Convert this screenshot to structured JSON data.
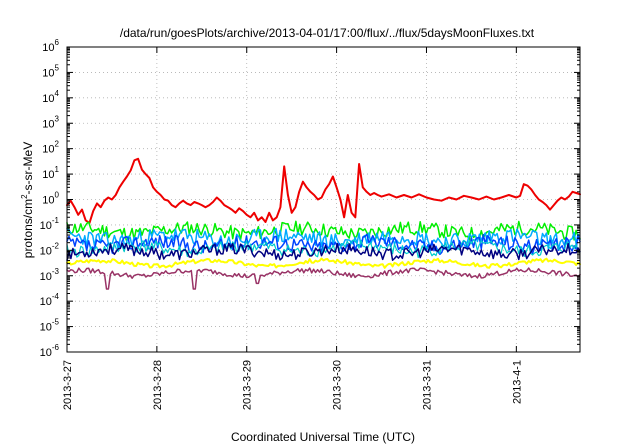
{
  "chart_data": {
    "type": "line",
    "title": "/data/run/goesPlots/archive/2013-04-01/17:00/flux/../flux/5daysMoonFluxes.txt",
    "xlabel": "Coordinated Universal Time (UTC)",
    "ylabel": {
      "base": "protons/cm",
      "sup": "2",
      "rest": "-s-sr-MeV"
    },
    "x_range": [
      "2013-03-27",
      "2013-04-01T17:00"
    ],
    "x_ticks": [
      "2013-3-27",
      "2013-3-28",
      "2013-3-29",
      "2013-3-30",
      "2013-3-31",
      "2013-4-1"
    ],
    "y_scale": "log",
    "y_range": [
      1e-06,
      1000000.0
    ],
    "y_ticks": [
      {
        "base": "10",
        "exp": "-6"
      },
      {
        "base": "10",
        "exp": "-5"
      },
      {
        "base": "10",
        "exp": "-4"
      },
      {
        "base": "10",
        "exp": "-3"
      },
      {
        "base": "10",
        "exp": "-2"
      },
      {
        "base": "10",
        "exp": "-1"
      },
      {
        "base": "10",
        "exp": "0"
      },
      {
        "base": "10",
        "exp": "1"
      },
      {
        "base": "10",
        "exp": "2"
      },
      {
        "base": "10",
        "exp": "3"
      },
      {
        "base": "10",
        "exp": "4"
      },
      {
        "base": "10",
        "exp": "5"
      },
      {
        "base": "10",
        "exp": "6"
      }
    ],
    "grid": true,
    "series": [
      {
        "color": "#ee0000",
        "width": 2,
        "points": [
          [
            "2013-03-27T00:00",
            0.6
          ],
          [
            "2013-03-27T01:00",
            0.9
          ],
          [
            "2013-03-27T02:00",
            0.5
          ],
          [
            "2013-03-27T03:00",
            0.25
          ],
          [
            "2013-03-27T04:00",
            0.4
          ],
          [
            "2013-03-27T05:00",
            0.15
          ],
          [
            "2013-03-27T06:00",
            0.12
          ],
          [
            "2013-03-27T07:00",
            0.35
          ],
          [
            "2013-03-27T08:00",
            0.7
          ],
          [
            "2013-03-27T09:00",
            0.5
          ],
          [
            "2013-03-27T10:00",
            0.9
          ],
          [
            "2013-03-27T11:00",
            1.2
          ],
          [
            "2013-03-27T12:00",
            1.0
          ],
          [
            "2013-03-27T13:00",
            1.5
          ],
          [
            "2013-03-27T14:00",
            3.0
          ],
          [
            "2013-03-27T15:00",
            5.0
          ],
          [
            "2013-03-27T16:00",
            8.0
          ],
          [
            "2013-03-27T17:00",
            14.0
          ],
          [
            "2013-03-27T18:00",
            35.0
          ],
          [
            "2013-03-27T19:00",
            40.0
          ],
          [
            "2013-03-27T20:00",
            15.0
          ],
          [
            "2013-03-27T21:00",
            10.0
          ],
          [
            "2013-03-27T22:00",
            7.0
          ],
          [
            "2013-03-27T23:00",
            3.0
          ],
          [
            "2013-03-28T00:00",
            2.0
          ],
          [
            "2013-03-28T01:00",
            1.5
          ],
          [
            "2013-03-28T02:00",
            1.0
          ],
          [
            "2013-03-28T03:00",
            0.9
          ],
          [
            "2013-03-28T04:00",
            0.6
          ],
          [
            "2013-03-28T05:00",
            0.5
          ],
          [
            "2013-03-28T06:00",
            0.7
          ],
          [
            "2013-03-28T07:00",
            0.9
          ],
          [
            "2013-03-28T08:00",
            0.7
          ],
          [
            "2013-03-28T09:00",
            0.6
          ],
          [
            "2013-03-28T10:00",
            0.8
          ],
          [
            "2013-03-28T11:00",
            0.7
          ],
          [
            "2013-03-28T12:00",
            0.6
          ],
          [
            "2013-03-28T13:00",
            0.5
          ],
          [
            "2013-03-28T14:00",
            0.6
          ],
          [
            "2013-03-28T15:00",
            0.8
          ],
          [
            "2013-03-28T16:00",
            1.2
          ],
          [
            "2013-03-28T17:00",
            0.9
          ],
          [
            "2013-03-28T18:00",
            0.6
          ],
          [
            "2013-03-28T19:00",
            0.5
          ],
          [
            "2013-03-28T20:00",
            0.4
          ],
          [
            "2013-03-28T21:00",
            0.3
          ],
          [
            "2013-03-28T22:00",
            0.45
          ],
          [
            "2013-03-28T23:00",
            0.35
          ],
          [
            "2013-03-29T00:00",
            0.25
          ],
          [
            "2013-03-29T01:00",
            0.2
          ],
          [
            "2013-03-29T02:00",
            0.3
          ],
          [
            "2013-03-29T03:00",
            0.15
          ],
          [
            "2013-03-29T04:00",
            0.2
          ],
          [
            "2013-03-29T05:00",
            0.13
          ],
          [
            "2013-03-29T06:00",
            0.3
          ],
          [
            "2013-03-29T07:00",
            0.15
          ],
          [
            "2013-03-29T08:00",
            0.2
          ],
          [
            "2013-03-29T09:00",
            0.5
          ],
          [
            "2013-03-29T10:00",
            20.0
          ],
          [
            "2013-03-29T11:00",
            1.5
          ],
          [
            "2013-03-29T12:00",
            0.3
          ],
          [
            "2013-03-29T13:00",
            0.5
          ],
          [
            "2013-03-29T14:00",
            2.0
          ],
          [
            "2013-03-29T15:00",
            5.0
          ],
          [
            "2013-03-29T16:00",
            3.0
          ],
          [
            "2013-03-29T17:00",
            2.0
          ],
          [
            "2013-03-29T18:00",
            1.5
          ],
          [
            "2013-03-29T19:00",
            1.0
          ],
          [
            "2013-03-29T20:00",
            1.2
          ],
          [
            "2013-03-29T21:00",
            2.5
          ],
          [
            "2013-03-29T22:00",
            4.0
          ],
          [
            "2013-03-29T23:00",
            8.0
          ],
          [
            "2013-03-30T00:00",
            3.0
          ],
          [
            "2013-03-30T01:00",
            1.0
          ],
          [
            "2013-03-30T02:00",
            0.2
          ],
          [
            "2013-03-30T03:00",
            1.5
          ],
          [
            "2013-03-30T04:00",
            0.3
          ],
          [
            "2013-03-30T05:00",
            0.2
          ],
          [
            "2013-03-30T06:00",
            25.0
          ],
          [
            "2013-03-30T07:00",
            3.0
          ],
          [
            "2013-03-30T08:00",
            2.0
          ],
          [
            "2013-03-30T09:00",
            1.5
          ],
          [
            "2013-03-30T10:00",
            1.8
          ],
          [
            "2013-03-30T11:00",
            1.5
          ],
          [
            "2013-03-30T12:00",
            1.3
          ],
          [
            "2013-03-30T14:00",
            1.6
          ],
          [
            "2013-03-30T16:00",
            1.2
          ],
          [
            "2013-03-30T18:00",
            1.5
          ],
          [
            "2013-03-30T20:00",
            1.2
          ],
          [
            "2013-03-30T22:00",
            1.6
          ],
          [
            "2013-03-31T00:00",
            1.2
          ],
          [
            "2013-03-31T02:00",
            1.0
          ],
          [
            "2013-03-31T04:00",
            0.9
          ],
          [
            "2013-03-31T06:00",
            1.2
          ],
          [
            "2013-03-31T08:00",
            1.0
          ],
          [
            "2013-03-31T10:00",
            1.4
          ],
          [
            "2013-03-31T12:00",
            1.2
          ],
          [
            "2013-03-31T14:00",
            1.0
          ],
          [
            "2013-03-31T16:00",
            1.3
          ],
          [
            "2013-03-31T18:00",
            1.0
          ],
          [
            "2013-03-31T20:00",
            1.2
          ],
          [
            "2013-03-31T22:00",
            1.5
          ],
          [
            "2013-04-01T00:00",
            1.2
          ],
          [
            "2013-04-01T01:00",
            1.4
          ],
          [
            "2013-04-01T02:00",
            4.0
          ],
          [
            "2013-04-01T03:00",
            3.5
          ],
          [
            "2013-04-01T04:00",
            2.5
          ],
          [
            "2013-04-01T05:00",
            1.5
          ],
          [
            "2013-04-01T06:00",
            1.0
          ],
          [
            "2013-04-01T07:00",
            0.8
          ],
          [
            "2013-04-01T08:00",
            0.6
          ],
          [
            "2013-04-01T09:00",
            0.4
          ],
          [
            "2013-04-01T10:00",
            0.6
          ],
          [
            "2013-04-01T11:00",
            0.9
          ],
          [
            "2013-04-01T12:00",
            1.2
          ],
          [
            "2013-04-01T13:00",
            1.0
          ],
          [
            "2013-04-01T14:00",
            1.3
          ],
          [
            "2013-04-01T15:00",
            2.0
          ],
          [
            "2013-04-01T16:00",
            1.8
          ],
          [
            "2013-04-01T17:00",
            1.6
          ]
        ]
      },
      {
        "color": "#00ee00",
        "width": 1.5,
        "level": 0.06,
        "amplitude": 1.9,
        "seed": 11
      },
      {
        "color": "#00aaff",
        "width": 1.5,
        "level": 0.03,
        "amplitude": 2.2,
        "seed": 23
      },
      {
        "color": "#0044ff",
        "width": 1.5,
        "level": 0.018,
        "amplitude": 2.0,
        "seed": 37
      },
      {
        "color": "#00cccc",
        "width": 1.2,
        "level": 0.012,
        "amplitude": 1.8,
        "seed": 41
      },
      {
        "color": "#000080",
        "width": 1.5,
        "level": 0.009,
        "amplitude": 1.7,
        "seed": 53
      },
      {
        "color": "#ffff00",
        "width": 2,
        "level": 0.0032,
        "amplitude": 1.2,
        "seed": 67
      },
      {
        "color": "#993366",
        "width": 1.5,
        "level": 0.0013,
        "amplitude": 1.25,
        "seed": 79,
        "dips": [
          [
            "2013-03-27T11:00",
            0.0003
          ],
          [
            "2013-03-28T10:00",
            0.0003
          ],
          [
            "2013-03-29T03:00",
            0.0005
          ]
        ]
      }
    ]
  }
}
